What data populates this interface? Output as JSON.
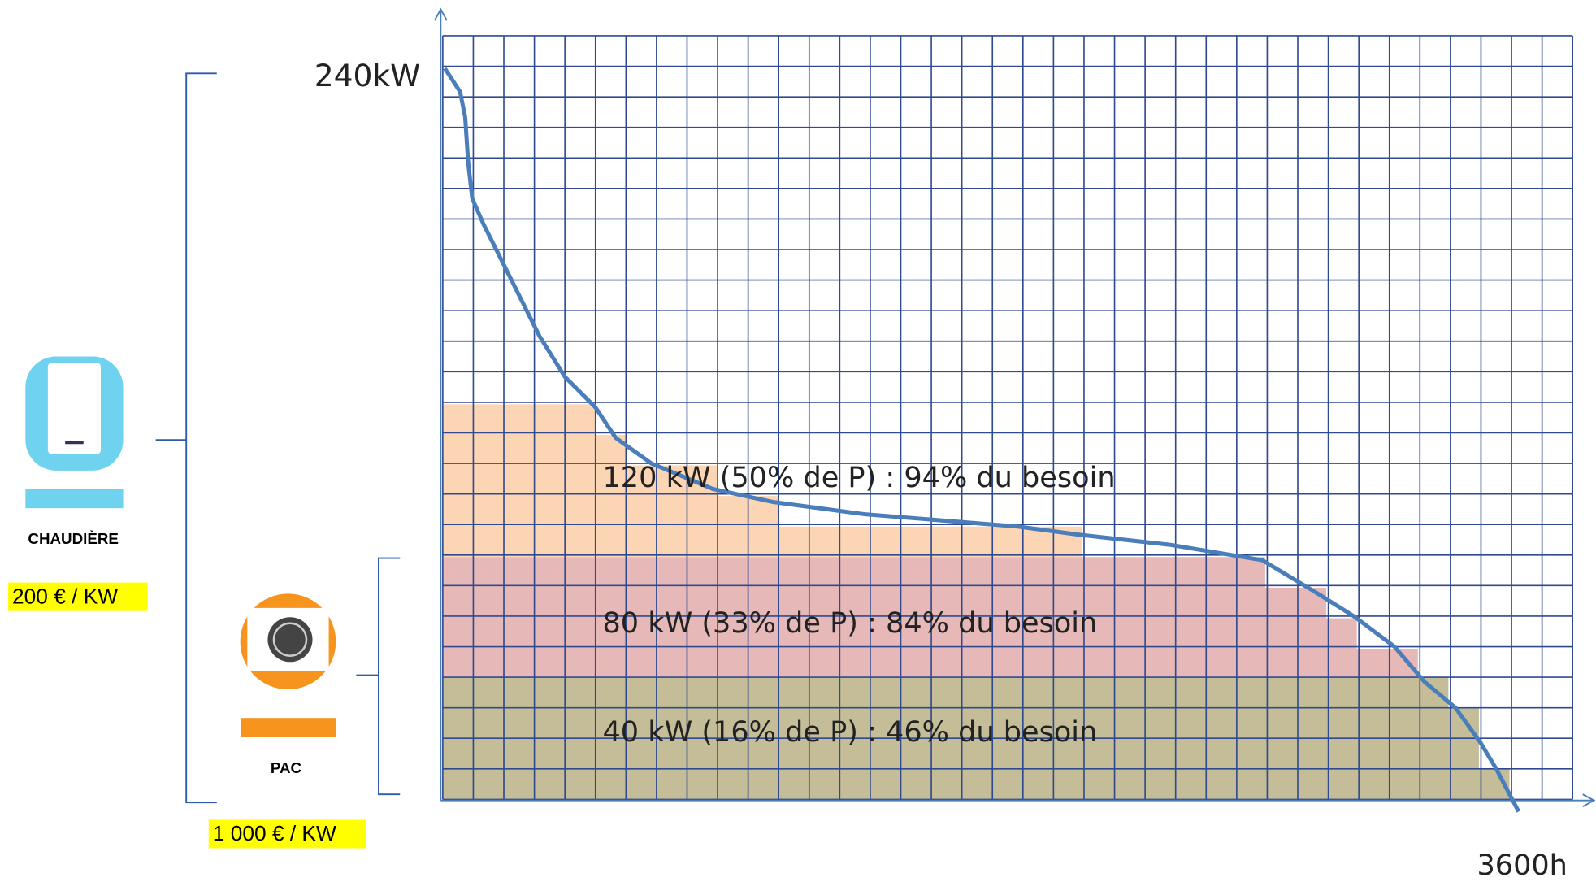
{
  "y_max_label": "240kW",
  "x_max_label": "3600h",
  "annotations": [
    "120 kW (50% de P) : 94% du besoin",
    "80 kW (33% de P) : 84% du besoin",
    "40 kW (16% de P) : 46% du besoin"
  ],
  "boiler": {
    "name": "CHAUDIÈRE",
    "price": "200 € / KW"
  },
  "heat_pump": {
    "name": "PAC",
    "price": "1 000 € / KW"
  }
}
